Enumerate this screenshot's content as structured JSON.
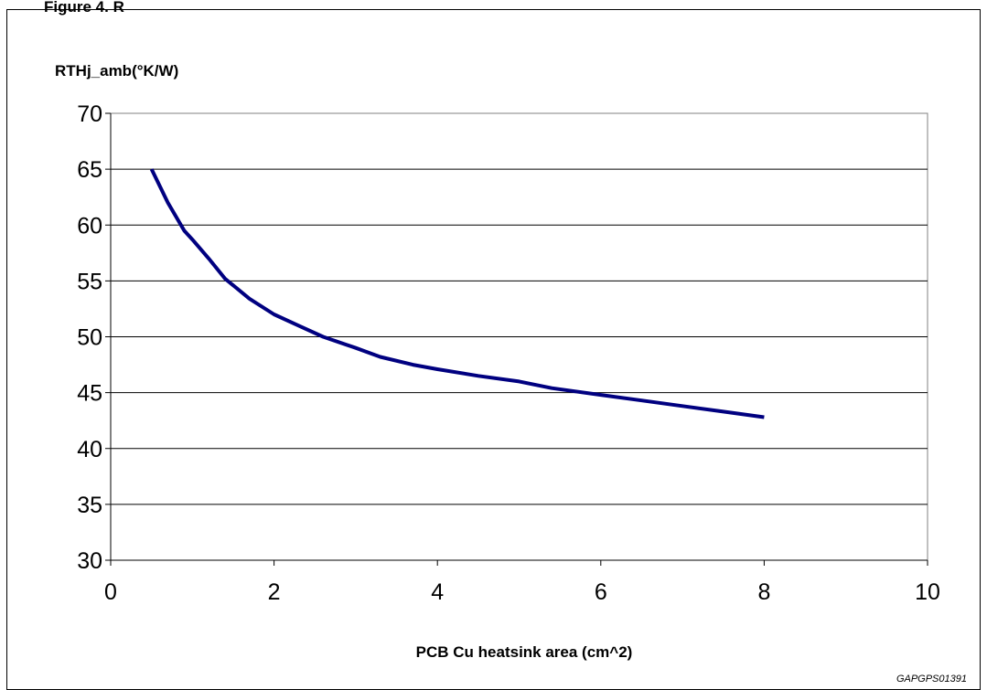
{
  "figure": {
    "title": "Figure 4. R",
    "code": "GAPGPS01391"
  },
  "chart_data": {
    "type": "line",
    "title": "",
    "xlabel": "PCB Cu heatsink area (cm^2)",
    "ylabel": "RTHj_amb(°K/W)",
    "xlim": [
      0,
      10
    ],
    "ylim": [
      30,
      70
    ],
    "xticks": [
      "0",
      "2",
      "4",
      "6",
      "8",
      "10"
    ],
    "yticks": [
      "30",
      "35",
      "40",
      "45",
      "50",
      "55",
      "60",
      "65",
      "70"
    ],
    "grid": "horizontal",
    "legend": "none",
    "line_color": "#000080",
    "series": [
      {
        "name": "",
        "x": [
          0.5,
          0.7,
          0.9,
          1.0,
          1.2,
          1.4,
          1.7,
          2.0,
          2.3,
          2.6,
          3.0,
          3.3,
          3.7,
          4.0,
          4.5,
          5.0,
          5.4,
          6.0,
          6.5,
          7.0,
          7.5,
          8.0
        ],
        "y": [
          65,
          62,
          59.5,
          58.7,
          57,
          55.2,
          53.4,
          52,
          51,
          50,
          49,
          48.2,
          47.5,
          47.1,
          46.5,
          46,
          45.4,
          44.8,
          44.3,
          43.8,
          43.3,
          42.8
        ]
      }
    ]
  }
}
